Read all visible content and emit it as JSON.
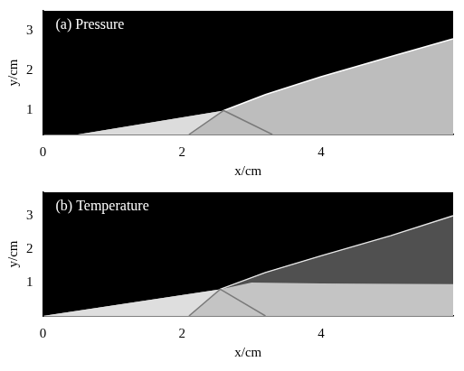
{
  "chart_data": [
    {
      "type": "field",
      "title": "(a) Pressure",
      "x_label": "x/cm",
      "y_label": "y/cm",
      "xlim": [
        0,
        5.9
      ],
      "ylim": [
        0.4,
        3.5
      ],
      "xticks": [
        0,
        2,
        4
      ],
      "yticks": [
        1,
        2,
        3
      ],
      "color": "#000000",
      "regions": [
        {
          "color": "#bdbdbd",
          "points": [
            [
              0.5,
              0.4
            ],
            [
              2.6,
              1.0
            ],
            [
              3.2,
              1.4
            ],
            [
              4.0,
              1.85
            ],
            [
              5.0,
              2.35
            ],
            [
              5.9,
              2.8
            ],
            [
              5.9,
              0.4
            ]
          ]
        },
        {
          "color": "#dcdcdc",
          "points": [
            [
              0.5,
              0.4
            ],
            [
              2.6,
              1.0
            ],
            [
              2.1,
              0.4
            ]
          ]
        }
      ],
      "lines": [
        {
          "color": "#7a7a7a",
          "points": [
            [
              2.1,
              0.4
            ],
            [
              2.6,
              1.0
            ],
            [
              3.3,
              0.4
            ]
          ]
        },
        {
          "color": "#ffffff",
          "points": [
            [
              2.6,
              1.0
            ],
            [
              3.2,
              1.4
            ],
            [
              4.0,
              1.85
            ],
            [
              5.0,
              2.35
            ],
            [
              5.9,
              2.8
            ]
          ]
        }
      ]
    },
    {
      "type": "field",
      "title": "(b) Temperature",
      "x_label": "x/cm",
      "y_label": "y/cm",
      "xlim": [
        0,
        5.9
      ],
      "ylim": [
        0,
        3.7
      ],
      "xticks": [
        0,
        2,
        4
      ],
      "yticks": [
        1,
        2,
        3
      ],
      "color": "#000000",
      "regions": [
        {
          "color": "#c4c4c4",
          "points": [
            [
              0,
              0
            ],
            [
              2.55,
              0.8
            ],
            [
              3.2,
              1.3
            ],
            [
              4.0,
              1.8
            ],
            [
              5.0,
              2.4
            ],
            [
              5.9,
              3.0
            ],
            [
              5.9,
              0
            ]
          ]
        },
        {
          "color": "#dedede",
          "points": [
            [
              0,
              0
            ],
            [
              2.55,
              0.8
            ],
            [
              2.1,
              0
            ]
          ]
        },
        {
          "color": "#505050",
          "points": [
            [
              2.55,
              0.8
            ],
            [
              3.0,
              1.0
            ],
            [
              4.0,
              0.97
            ],
            [
              5.9,
              0.95
            ],
            [
              5.9,
              3.0
            ],
            [
              5.0,
              2.4
            ],
            [
              4.0,
              1.8
            ],
            [
              3.2,
              1.3
            ]
          ]
        }
      ],
      "lines": [
        {
          "color": "#7a7a7a",
          "points": [
            [
              2.1,
              0
            ],
            [
              2.55,
              0.8
            ],
            [
              3.2,
              0
            ]
          ]
        },
        {
          "color": "#e6e6e6",
          "points": [
            [
              2.55,
              0.8
            ],
            [
              3.2,
              1.3
            ],
            [
              4.0,
              1.8
            ],
            [
              5.0,
              2.4
            ],
            [
              5.9,
              3.0
            ]
          ]
        }
      ]
    }
  ]
}
